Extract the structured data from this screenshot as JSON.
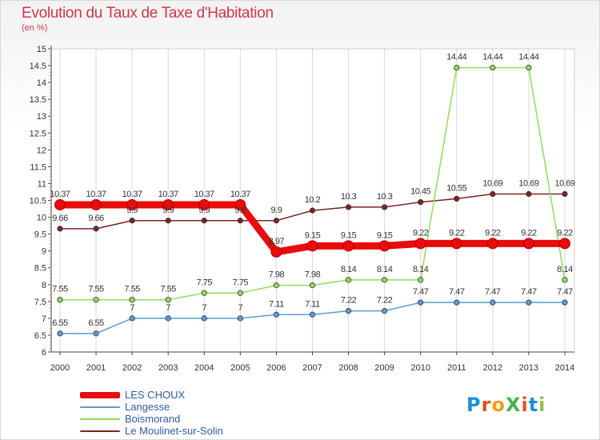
{
  "title": "Evolution du Taux de Taxe d'Habitation",
  "subtitle": "(en %)",
  "logo": {
    "text": "ProXiti",
    "colors": [
      "#1a8fd4",
      "#e94e1b",
      "#f39c12",
      "#4caf50",
      "#e94e1b",
      "#1a8fd4",
      "#8bc34a"
    ]
  },
  "chart_data": {
    "type": "line",
    "title": "Evolution du Taux de Taxe d'Habitation",
    "ylabel": "(en %)",
    "x": [
      "2000",
      "2001",
      "2002",
      "2003",
      "2004",
      "2005",
      "2006",
      "2007",
      "2008",
      "2009",
      "2010",
      "2011",
      "2012",
      "2013",
      "2014"
    ],
    "ylim": [
      6,
      15
    ],
    "yticks": [
      "6",
      "6.5",
      "7",
      "7.5",
      "8",
      "8.5",
      "9",
      "9.5",
      "10",
      "10.5",
      "11",
      "11.5",
      "12",
      "12.5",
      "13",
      "13.5",
      "14",
      "14.5",
      "15"
    ],
    "grid": "vertical",
    "series": [
      {
        "name": "LES CHOUX",
        "color": "#e80c0c",
        "lineWidth": 9,
        "values": [
          10.37,
          10.37,
          10.37,
          10.37,
          10.37,
          10.37,
          8.97,
          9.15,
          9.15,
          9.15,
          9.22,
          9.22,
          9.22,
          9.22,
          9.22
        ],
        "labels": [
          "10.37",
          "10.37",
          "10.37",
          "10.37",
          "10.37",
          "10.37",
          "8.97",
          "9.15",
          "9.15",
          "9.15",
          "9.22",
          "9.22",
          "9.22",
          "9.22",
          "9.22"
        ]
      },
      {
        "name": "Langesse",
        "color": "#5b9bd5",
        "lineWidth": 1.5,
        "values": [
          6.55,
          6.55,
          7,
          7,
          7,
          7,
          7.11,
          7.11,
          7.22,
          7.22,
          7.47,
          7.47,
          7.47,
          7.47,
          7.47
        ],
        "labels": [
          "6.55",
          "6.55",
          "7",
          "7",
          "7",
          "7",
          "7.11",
          "7.11",
          "7.22",
          "7.22",
          "7.47",
          "7.47",
          "7.47",
          "7.47",
          "7.47"
        ]
      },
      {
        "name": "Boismorand",
        "color": "#8fdc5c",
        "lineWidth": 1.5,
        "values": [
          7.55,
          7.55,
          7.55,
          7.55,
          7.75,
          7.75,
          7.98,
          7.98,
          8.14,
          8.14,
          8.14,
          14.44,
          14.44,
          14.44,
          8.14
        ],
        "labels": [
          "7.55",
          "7.55",
          "7.55",
          "7.55",
          "7.75",
          "7.75",
          "7.98",
          "7.98",
          "8.14",
          "8.14",
          "8.14",
          "14.44",
          "14.44",
          "14.44",
          "8.14"
        ]
      },
      {
        "name": "Le Moulinet-sur-Solin",
        "color": "#7a2424",
        "lineWidth": 1.5,
        "values": [
          9.66,
          9.66,
          9.9,
          9.9,
          9.9,
          9.9,
          9.9,
          10.2,
          10.3,
          10.3,
          10.45,
          10.55,
          10.69,
          10.69,
          10.69
        ],
        "labels": [
          "9.66",
          "9.66",
          "9.9",
          "9.9",
          "9.9",
          "9.9",
          "9.9",
          "10.2",
          "10.3",
          "10.3",
          "10.45",
          "10.55",
          "10.69",
          "10.69",
          "10.69"
        ]
      }
    ]
  }
}
